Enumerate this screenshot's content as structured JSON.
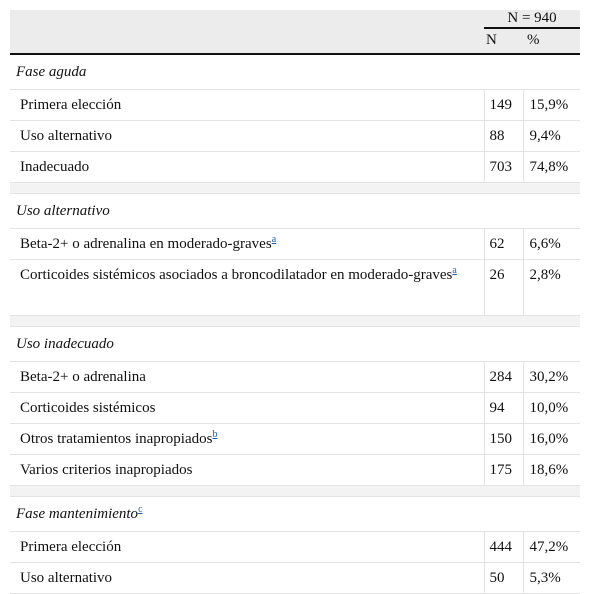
{
  "header": {
    "n_total": "N = 940",
    "col_n": "N",
    "col_pct": "%"
  },
  "sections": [
    {
      "title": "Fase aguda",
      "rows": [
        {
          "label": "Primera elección",
          "n": "149",
          "pct": "15,9%"
        },
        {
          "label": "Uso alternativo",
          "n": "88",
          "pct": "9,4%"
        },
        {
          "label": "Inadecuado",
          "n": "703",
          "pct": "74,8%"
        }
      ]
    },
    {
      "title": "Uso alternativo",
      "rows": [
        {
          "label": "Beta-2+ o adrenalina en moderado-graves",
          "sup": "a",
          "n": "62",
          "pct": "6,6%"
        },
        {
          "label": "Corticoides sistémicos asociados a broncodilatador en moderado-graves",
          "sup": "a",
          "n": "26",
          "pct": "2,8%"
        }
      ]
    },
    {
      "title": "Uso inadecuado",
      "rows": [
        {
          "label": "Beta-2+ o adrenalina",
          "n": "284",
          "pct": "30,2%"
        },
        {
          "label": "Corticoides sistémicos",
          "n": "94",
          "pct": "10,0%"
        },
        {
          "label": "Otros tratamientos inapropiados",
          "sup": "b",
          "n": "150",
          "pct": "16,0%"
        },
        {
          "label": "Varios criterios inapropiados",
          "n": "175",
          "pct": "18,6%"
        }
      ]
    },
    {
      "title": "Fase mantenimiento",
      "sup": "c",
      "rows": [
        {
          "label": "Primera elección",
          "n": "444",
          "pct": "47,2%"
        },
        {
          "label": "Uso alternativo",
          "n": "50",
          "pct": "5,3%"
        }
      ]
    }
  ]
}
